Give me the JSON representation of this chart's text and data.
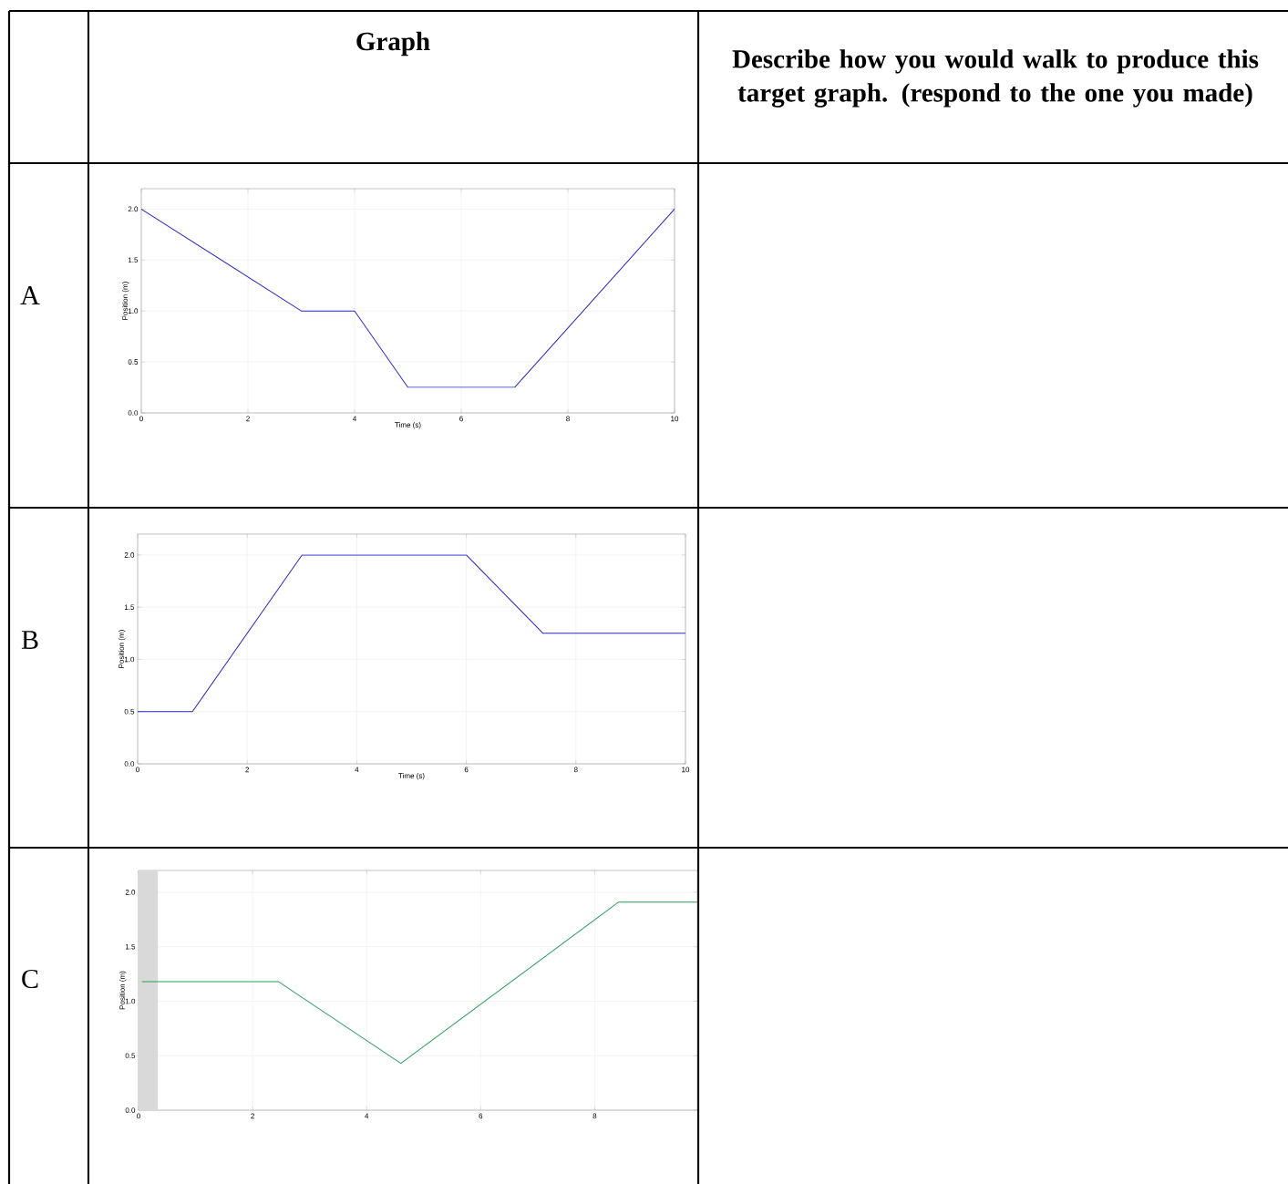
{
  "chart_data": [
    {
      "type": "other",
      "annotations": [
        "Graph",
        "Describe how you would walk to produce this target graph. (respond to the one you made)"
      ]
    },
    {
      "type": "line",
      "title": "A",
      "xlabel": "Time (s)",
      "ylabel": "Position (m)",
      "x": [
        0,
        3,
        4,
        5,
        7,
        10
      ],
      "values": [
        2,
        1,
        1,
        0.25,
        0.25,
        2
      ],
      "color": "#2828c8",
      "xlim": [
        0,
        10
      ],
      "ylim": [
        0,
        2.2
      ],
      "xticks": [
        0,
        2,
        4,
        6,
        8,
        10
      ],
      "yticks": [
        {
          "value": 0,
          "label": "0.0"
        },
        {
          "value": 0.5,
          "label": "0.5"
        },
        {
          "value": 1,
          "label": "1.0"
        },
        {
          "value": 1.5,
          "label": "1.5"
        },
        {
          "value": 2,
          "label": "2.0"
        }
      ],
      "grid": true
    },
    {
      "type": "line",
      "title": "B",
      "xlabel": "Time (s)",
      "ylabel": "Position (m)",
      "x": [
        0,
        1,
        3,
        6,
        7.4,
        10
      ],
      "values": [
        0.5,
        0.5,
        2,
        2,
        1.25,
        1.25
      ],
      "color": "#2828c8",
      "xlim": [
        0,
        10
      ],
      "ylim": [
        0,
        2.2
      ],
      "xticks": [
        0,
        2,
        4,
        6,
        8,
        10
      ],
      "yticks": [
        {
          "value": 0,
          "label": "0.0"
        },
        {
          "value": 0.5,
          "label": "0.5"
        },
        {
          "value": 1,
          "label": "1.0"
        },
        {
          "value": 1.5,
          "label": "1.5"
        },
        {
          "value": 2,
          "label": "2.0"
        }
      ],
      "grid": true
    },
    {
      "type": "line",
      "title": "C",
      "ylabel": "Position (m)",
      "x": [
        0.06,
        2.45,
        4.6,
        8.42,
        9.8
      ],
      "values": [
        1.18,
        1.18,
        0.43,
        1.91,
        1.91
      ],
      "color": "#2a9d5a",
      "xlim": [
        0,
        9.8
      ],
      "ylim": [
        0,
        2.2
      ],
      "xticks": [
        0,
        2,
        4,
        6,
        8
      ],
      "yticks": [
        {
          "value": 0,
          "label": "0.0"
        },
        {
          "value": 0.5,
          "label": "0.5"
        },
        {
          "value": 1,
          "label": "1.0"
        },
        {
          "value": 1.5,
          "label": "1.5"
        },
        {
          "value": 2,
          "label": "2.0"
        }
      ],
      "grid": true,
      "bands": [
        {
          "axis": "x",
          "from": 0,
          "to": 0.34,
          "color": "#d9d9d9"
        }
      ]
    }
  ]
}
